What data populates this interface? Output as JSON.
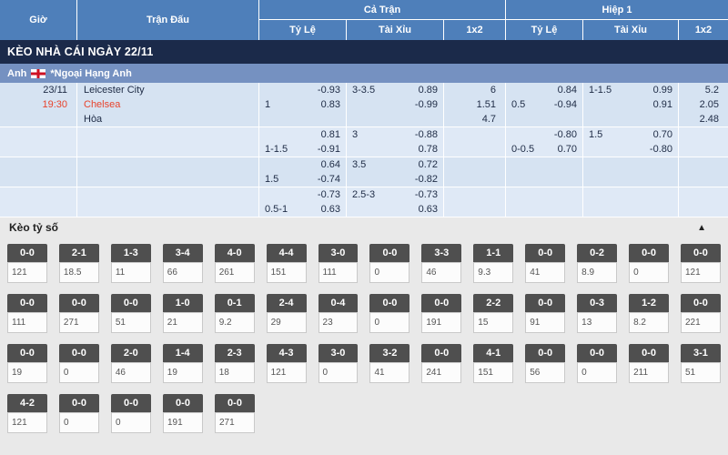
{
  "colors": {
    "header_blue": "#4e7fba",
    "banner_navy": "#1b2a4a",
    "league_blue": "#7591c1",
    "row_light": "#d6e3f2",
    "row_alt": "#dfe9f6",
    "accent_red": "#e8432c",
    "score_header_gray": "#4f4f4f"
  },
  "header": {
    "gio": "Giờ",
    "tran_dau": "Trận Đấu",
    "ca_tran": "Cả Trận",
    "hiep_1": "Hiệp 1",
    "ty_le": "Tỷ Lệ",
    "tai_xiu": "Tài Xỉu",
    "one_x_two": "1x2"
  },
  "banner": {
    "title": "KÈO NHÀ CÁI NGÀY 22/11"
  },
  "league": {
    "country": "Anh",
    "name": "*Ngoại Hạng Anh",
    "flag": "england-flag"
  },
  "odds_rows": [
    {
      "time": [
        {
          "text": "23/11",
          "red": false
        },
        {
          "text": "19:30",
          "red": true
        }
      ],
      "match": [
        {
          "text": "Leicester City",
          "red": false
        },
        {
          "text": "Chelsea",
          "red": true
        },
        {
          "text": "Hòa",
          "red": false
        }
      ],
      "ft_handicap": [
        [
          "",
          "-0.93"
        ],
        [
          "1",
          "0.83"
        ]
      ],
      "ft_ou": [
        [
          "3-3.5",
          "0.89"
        ],
        [
          "",
          "-0.99"
        ]
      ],
      "ft_1x2": [
        "6",
        "1.51",
        "4.7"
      ],
      "h1_handicap": [
        [
          "",
          "0.84"
        ],
        [
          "0.5",
          "-0.94"
        ]
      ],
      "h1_ou": [
        [
          "1-1.5",
          "0.99"
        ],
        [
          "",
          "0.91"
        ]
      ],
      "h1_1x2": [
        "5.2",
        "2.05",
        "2.48"
      ]
    },
    {
      "time": [],
      "match": [],
      "ft_handicap": [
        [
          "",
          "0.81"
        ],
        [
          "1-1.5",
          "-0.91"
        ]
      ],
      "ft_ou": [
        [
          "3",
          "-0.88"
        ],
        [
          "",
          "0.78"
        ]
      ],
      "ft_1x2": [],
      "h1_handicap": [
        [
          "",
          "-0.80"
        ],
        [
          "0-0.5",
          "0.70"
        ]
      ],
      "h1_ou": [
        [
          "1.5",
          "0.70"
        ],
        [
          "",
          "-0.80"
        ]
      ],
      "h1_1x2": []
    },
    {
      "time": [],
      "match": [],
      "ft_handicap": [
        [
          "",
          "0.64"
        ],
        [
          "1.5",
          "-0.74"
        ]
      ],
      "ft_ou": [
        [
          "3.5",
          "0.72"
        ],
        [
          "",
          "-0.82"
        ]
      ],
      "ft_1x2": [],
      "h1_handicap": [],
      "h1_ou": [],
      "h1_1x2": []
    },
    {
      "time": [],
      "match": [],
      "ft_handicap": [
        [
          "",
          "-0.73"
        ],
        [
          "0.5-1",
          "0.63"
        ]
      ],
      "ft_ou": [
        [
          "2.5-3",
          "-0.73"
        ],
        [
          "",
          "0.63"
        ]
      ],
      "ft_1x2": [],
      "h1_handicap": [],
      "h1_ou": [],
      "h1_1x2": []
    }
  ],
  "score_board": {
    "title": "Kèo tỷ số",
    "collapse_icon": "▲",
    "rows": [
      [
        {
          "s": "0-0",
          "v": "121"
        },
        {
          "s": "2-1",
          "v": "18.5"
        },
        {
          "s": "1-3",
          "v": "11"
        },
        {
          "s": "3-4",
          "v": "66"
        },
        {
          "s": "4-0",
          "v": "261"
        },
        {
          "s": "4-4",
          "v": "151"
        },
        {
          "s": "3-0",
          "v": "111"
        },
        {
          "s": "0-0",
          "v": "0"
        },
        {
          "s": "3-3",
          "v": "46"
        },
        {
          "s": "1-1",
          "v": "9.3"
        },
        {
          "s": "0-0",
          "v": "41"
        },
        {
          "s": "0-2",
          "v": "8.9"
        },
        {
          "s": "0-0",
          "v": "0"
        },
        {
          "s": "0-0",
          "v": "121"
        }
      ],
      [
        {
          "s": "0-0",
          "v": "111"
        },
        {
          "s": "0-0",
          "v": "271"
        },
        {
          "s": "0-0",
          "v": "51"
        },
        {
          "s": "1-0",
          "v": "21"
        },
        {
          "s": "0-1",
          "v": "9.2"
        },
        {
          "s": "2-4",
          "v": "29"
        },
        {
          "s": "0-4",
          "v": "23"
        },
        {
          "s": "0-0",
          "v": "0"
        },
        {
          "s": "0-0",
          "v": "191"
        },
        {
          "s": "2-2",
          "v": "15"
        },
        {
          "s": "0-0",
          "v": "91"
        },
        {
          "s": "0-3",
          "v": "13"
        },
        {
          "s": "1-2",
          "v": "8.2"
        },
        {
          "s": "0-0",
          "v": "221"
        }
      ],
      [
        {
          "s": "0-0",
          "v": "19"
        },
        {
          "s": "0-0",
          "v": "0"
        },
        {
          "s": "2-0",
          "v": "46"
        },
        {
          "s": "1-4",
          "v": "19"
        },
        {
          "s": "2-3",
          "v": "18"
        },
        {
          "s": "4-3",
          "v": "121"
        },
        {
          "s": "3-0",
          "v": "0"
        },
        {
          "s": "3-2",
          "v": "41"
        },
        {
          "s": "0-0",
          "v": "241"
        },
        {
          "s": "4-1",
          "v": "151"
        },
        {
          "s": "0-0",
          "v": "56"
        },
        {
          "s": "0-0",
          "v": "0"
        },
        {
          "s": "0-0",
          "v": "211"
        },
        {
          "s": "3-1",
          "v": "51"
        }
      ],
      [
        {
          "s": "4-2",
          "v": "121"
        },
        {
          "s": "0-0",
          "v": "0"
        },
        {
          "s": "0-0",
          "v": "0"
        },
        {
          "s": "0-0",
          "v": "191"
        },
        {
          "s": "0-0",
          "v": "271"
        }
      ]
    ]
  }
}
